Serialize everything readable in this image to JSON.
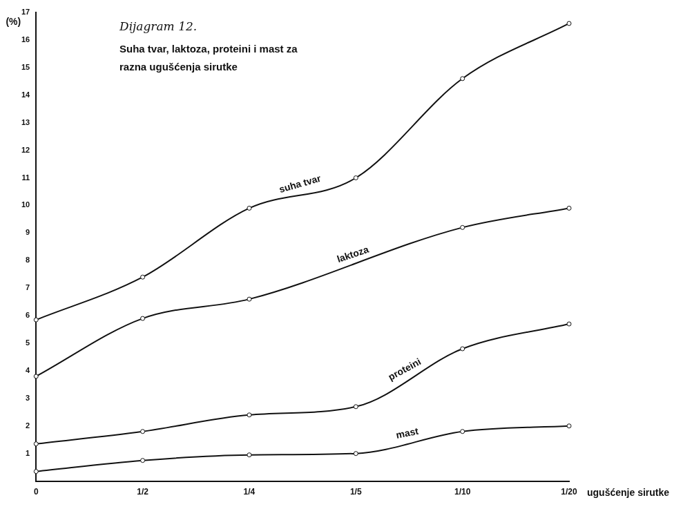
{
  "chart_data": {
    "type": "line",
    "title": "Dijagram 12.",
    "subtitle": "Suha tvar, laktoza, proteini i mast za razna ugušćenja sirutke",
    "xlabel": "ugušćenje sirutke",
    "ylabel": "(%)",
    "categories": [
      "0",
      "1/2",
      "1/4",
      "1/5",
      "1/10",
      "1/20"
    ],
    "series": [
      {
        "name": "suha tvar",
        "color": "#111111",
        "values": [
          5.85,
          7.4,
          9.9,
          11.0,
          14.6,
          16.6
        ]
      },
      {
        "name": "laktoza",
        "color": "#111111",
        "values": [
          3.8,
          5.9,
          6.6,
          null,
          9.2,
          9.9
        ]
      },
      {
        "name": "proteini",
        "color": "#111111",
        "values": [
          1.35,
          1.8,
          2.4,
          2.7,
          4.8,
          5.7
        ]
      },
      {
        "name": "mast",
        "color": "#111111",
        "values": [
          0.35,
          0.75,
          0.95,
          1.0,
          1.8,
          2.0
        ]
      }
    ],
    "ylim": [
      0,
      17
    ],
    "yticks": [
      1,
      2,
      3,
      4,
      5,
      6,
      7,
      8,
      9,
      10,
      11,
      12,
      13,
      14,
      15,
      16,
      17
    ],
    "grid": false,
    "legend": false,
    "marker": "circle",
    "line_style": "solid"
  }
}
